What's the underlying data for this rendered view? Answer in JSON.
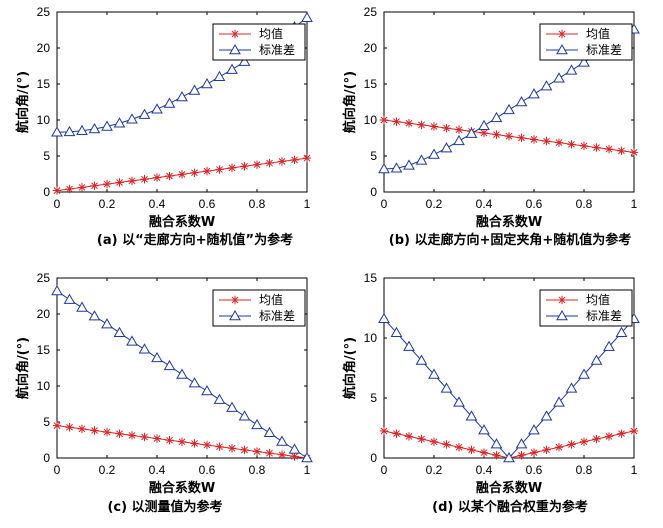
{
  "chart_data": [
    {
      "type": "line",
      "caption": "(a)  以“走廊方向+随机值”为参考",
      "xlabel": "融合系数W",
      "ylabel": "航向角/(°)",
      "xlim": [
        0,
        1
      ],
      "ylim": [
        0,
        25
      ],
      "xticks": [
        "0",
        "0.2",
        "0.4",
        "0.6",
        "0.8",
        "1"
      ],
      "yticks": [
        "0",
        "5",
        "10",
        "15",
        "20",
        "25"
      ],
      "legend_position": "top-right",
      "series": [
        {
          "name": "均值",
          "marker": "star",
          "color": "#d62728",
          "x": [
            0,
            0.05,
            0.1,
            0.15,
            0.2,
            0.25,
            0.3,
            0.35,
            0.4,
            0.45,
            0.5,
            0.55,
            0.6,
            0.65,
            0.7,
            0.75,
            0.8,
            0.85,
            0.9,
            0.95,
            1
          ],
          "y": [
            0.2,
            0.42,
            0.65,
            0.87,
            1.1,
            1.32,
            1.55,
            1.77,
            2.0,
            2.22,
            2.45,
            2.67,
            2.9,
            3.12,
            3.35,
            3.57,
            3.8,
            4.02,
            4.25,
            4.47,
            4.7
          ]
        },
        {
          "name": "标准差",
          "marker": "triangle",
          "color": "#1f3a93",
          "x": [
            0,
            0.05,
            0.1,
            0.15,
            0.2,
            0.25,
            0.3,
            0.35,
            0.4,
            0.45,
            0.5,
            0.55,
            0.6,
            0.65,
            0.7,
            0.75,
            0.8,
            0.85,
            0.9,
            0.95,
            1
          ],
          "y": [
            8.3,
            8.35,
            8.5,
            8.75,
            9.1,
            9.55,
            10.1,
            10.75,
            11.5,
            12.3,
            13.2,
            14.1,
            15.0,
            16.0,
            17.0,
            18.1,
            19.2,
            20.4,
            21.6,
            22.9,
            24.2
          ]
        }
      ]
    },
    {
      "type": "line",
      "caption": "(b)  以走廊方向+固定夹角+随机值为参考",
      "xlabel": "融合系数W",
      "ylabel": "航向角/(°)",
      "xlim": [
        0,
        1
      ],
      "ylim": [
        0,
        25
      ],
      "xticks": [
        "0",
        "0.2",
        "0.4",
        "0.6",
        "0.8",
        "1"
      ],
      "yticks": [
        "0",
        "5",
        "10",
        "15",
        "20",
        "25"
      ],
      "legend_position": "top-right",
      "series": [
        {
          "name": "均值",
          "marker": "star",
          "color": "#d62728",
          "x": [
            0,
            0.05,
            0.1,
            0.15,
            0.2,
            0.25,
            0.3,
            0.35,
            0.4,
            0.45,
            0.5,
            0.55,
            0.6,
            0.65,
            0.7,
            0.75,
            0.8,
            0.85,
            0.9,
            0.95,
            1
          ],
          "y": [
            10.0,
            9.77,
            9.55,
            9.32,
            9.1,
            8.87,
            8.65,
            8.42,
            8.2,
            7.97,
            7.75,
            7.52,
            7.3,
            7.07,
            6.85,
            6.62,
            6.4,
            6.17,
            5.95,
            5.72,
            5.5
          ]
        },
        {
          "name": "标准差",
          "marker": "triangle",
          "color": "#1f3a93",
          "x": [
            0,
            0.05,
            0.1,
            0.15,
            0.2,
            0.25,
            0.3,
            0.35,
            0.4,
            0.45,
            0.5,
            0.55,
            0.6,
            0.65,
            0.7,
            0.75,
            0.8,
            0.85,
            0.9,
            0.95,
            1
          ],
          "y": [
            3.2,
            3.3,
            3.7,
            4.4,
            5.2,
            6.1,
            7.1,
            8.1,
            9.2,
            10.3,
            11.4,
            12.5,
            13.6,
            14.7,
            15.8,
            16.9,
            18.0,
            19.1,
            20.2,
            21.4,
            22.6
          ]
        }
      ]
    },
    {
      "type": "line",
      "caption": "(c)  以测量值为参考",
      "xlabel": "融合系数W",
      "ylabel": "航向角/(°)",
      "xlim": [
        0,
        1
      ],
      "ylim": [
        0,
        25
      ],
      "xticks": [
        "0",
        "0.2",
        "0.4",
        "0.6",
        "0.8",
        "1"
      ],
      "yticks": [
        "0",
        "5",
        "10",
        "15",
        "20",
        "25"
      ],
      "legend_position": "top-right",
      "series": [
        {
          "name": "均值",
          "marker": "star",
          "color": "#d62728",
          "x": [
            0,
            0.05,
            0.1,
            0.15,
            0.2,
            0.25,
            0.3,
            0.35,
            0.4,
            0.45,
            0.5,
            0.55,
            0.6,
            0.65,
            0.7,
            0.75,
            0.8,
            0.85,
            0.9,
            0.95,
            1
          ],
          "y": [
            4.5,
            4.27,
            4.05,
            3.82,
            3.6,
            3.37,
            3.15,
            2.92,
            2.7,
            2.47,
            2.25,
            2.02,
            1.8,
            1.57,
            1.35,
            1.12,
            0.9,
            0.67,
            0.45,
            0.22,
            0.0
          ]
        },
        {
          "name": "标准差",
          "marker": "triangle",
          "color": "#1f3a93",
          "x": [
            0,
            0.05,
            0.1,
            0.15,
            0.2,
            0.25,
            0.3,
            0.35,
            0.4,
            0.45,
            0.5,
            0.55,
            0.6,
            0.65,
            0.7,
            0.75,
            0.8,
            0.85,
            0.9,
            0.95,
            1
          ],
          "y": [
            23.2,
            22.0,
            20.9,
            19.7,
            18.6,
            17.4,
            16.2,
            15.1,
            13.9,
            12.8,
            11.6,
            10.4,
            9.3,
            8.1,
            7.0,
            5.8,
            4.6,
            3.5,
            2.3,
            1.2,
            0.0
          ]
        }
      ]
    },
    {
      "type": "line",
      "caption": "(d)  以某个融合权重为参考",
      "xlabel": "融合系数W",
      "ylabel": "航向角/(°)",
      "xlim": [
        0,
        1
      ],
      "ylim": [
        0,
        15
      ],
      "xticks": [
        "0",
        "0.2",
        "0.4",
        "0.6",
        "0.8",
        "1"
      ],
      "yticks": [
        "0",
        "5",
        "10",
        "15"
      ],
      "legend_position": "top-right",
      "series": [
        {
          "name": "均值",
          "marker": "star",
          "color": "#d62728",
          "x": [
            0,
            0.05,
            0.1,
            0.15,
            0.2,
            0.25,
            0.3,
            0.35,
            0.4,
            0.45,
            0.5,
            0.55,
            0.6,
            0.65,
            0.7,
            0.75,
            0.8,
            0.85,
            0.9,
            0.95,
            1
          ],
          "y": [
            2.25,
            2.03,
            1.8,
            1.58,
            1.35,
            1.13,
            0.9,
            0.68,
            0.45,
            0.23,
            0.0,
            0.23,
            0.45,
            0.68,
            0.9,
            1.13,
            1.35,
            1.58,
            1.8,
            2.03,
            2.25
          ]
        },
        {
          "name": "标准差",
          "marker": "triangle",
          "color": "#1f3a93",
          "x": [
            0,
            0.05,
            0.1,
            0.15,
            0.2,
            0.25,
            0.3,
            0.35,
            0.4,
            0.45,
            0.5,
            0.55,
            0.6,
            0.65,
            0.7,
            0.75,
            0.8,
            0.85,
            0.9,
            0.95,
            1
          ],
          "y": [
            11.6,
            10.44,
            9.28,
            8.12,
            6.96,
            5.8,
            4.64,
            3.48,
            2.32,
            1.16,
            0.0,
            1.16,
            2.32,
            3.48,
            4.64,
            5.8,
            6.96,
            8.12,
            9.28,
            10.44,
            11.6
          ]
        }
      ]
    }
  ]
}
